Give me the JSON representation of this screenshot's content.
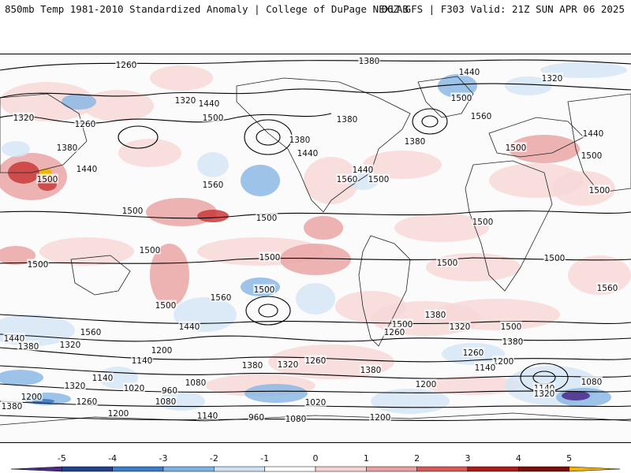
{
  "header": {
    "left": "850mb Temp 1981-2010 Standardized Anomaly | College of DuPage NEXLAB",
    "right": "06Z GFS | F303 Valid: 21Z SUN APR 06 2025"
  },
  "colorbar": {
    "ticks": [
      "-5",
      "-4",
      "-3",
      "-2",
      "-1",
      "0",
      "1",
      "2",
      "3",
      "4",
      "5"
    ],
    "colors": [
      "#4b2a8a",
      "#24408a",
      "#3a7cc6",
      "#7eb0e0",
      "#cfe1f4",
      "#ffffff",
      "#f6d3d3",
      "#e9a0a0",
      "#d45a5a",
      "#a81e1e",
      "#7a0d0d",
      "#f2b400"
    ]
  },
  "contour_labels": [
    "1260",
    "1380",
    "1440",
    "1320",
    "1500",
    "1560",
    "1200",
    "1140",
    "1080",
    "1020",
    "960"
  ],
  "anomaly_legend_colors": {
    "warm_light": "#f8d8d8",
    "warm_mid": "#eaa6a6",
    "warm_strong": "#c93a3a",
    "cold_light": "#d6e6f6",
    "cold_mid": "#8cb8e4",
    "cold_strong": "#3a74c0",
    "cold_extreme": "#4b2a8a"
  }
}
